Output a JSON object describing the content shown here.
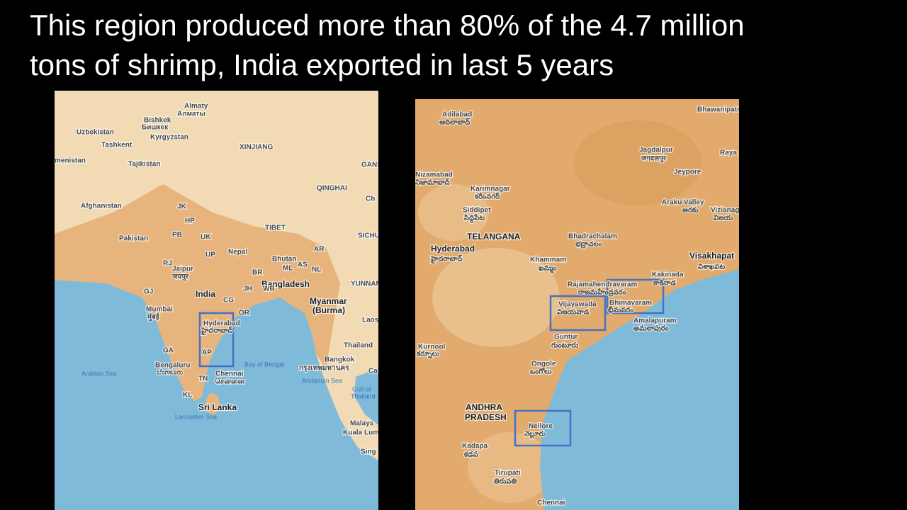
{
  "title_lines": [
    "This region produced more than 80% of the 4.7 million",
    "tons of shrimp, India exported in last 5 years"
  ],
  "left_map": {
    "labels": [
      "Almaty",
      "Алматы",
      "Bishkek",
      "Бишкек",
      "Uzbekistan",
      "Kyrgyzstan",
      "Tashkent",
      "XINJIANG",
      "menistan",
      "Tajikistan",
      "GANS",
      "QINGHAI",
      "Ch",
      "Afghanistan",
      "JK",
      "HP",
      "TIBET",
      "Pakistan",
      "PB",
      "UK",
      "SICHU",
      "Nepal",
      "UP",
      "AR",
      "RJ",
      "Bhutan",
      "Jaipur",
      "जयपुर",
      "BR",
      "ML",
      "AS",
      "NL",
      "Bangladesh",
      "YUNNAN",
      "JH",
      "WB",
      "India",
      "Myanmar",
      "(Burma)",
      "GJ",
      "CG",
      "OR",
      "Mumbai",
      "मुंबई",
      "Laos",
      "Hyderabad",
      "హైదరాబాద్",
      "Thailand",
      "GA",
      "AP",
      "Bay of Bengal",
      "Bangkok",
      "กรุงเทพมหานคร",
      "Ca",
      "Bengaluru",
      "ಬೆಂಗಳೂರು",
      "Arabian Sea",
      "Chennai",
      "சென்னை",
      "TN",
      "Andaman Sea",
      "Gulf of",
      "Thailand",
      "KL",
      "Sri Lanka",
      "Laccadive Sea",
      "Malays",
      "Kuala Lum",
      "Sing"
    ]
  },
  "right_map": {
    "labels": [
      "Adilabad",
      "ఆదిలాబాద్",
      "Bhawanipatr",
      "Nizamabad",
      "నిజామాబాద్",
      "Karimnagar",
      "కరీంనగర్",
      "Jagdalpur",
      "जगदलपुर",
      "Raya",
      "Jeypore",
      "Siddipet",
      "సిద్దిపేట",
      "Araku Valley",
      "అరకు",
      "Vizianag",
      "విజయ",
      "TELANGANA",
      "Bhadrachalam",
      "భద్రాచలం",
      "Hyderabad",
      "హైదరాబాద్",
      "Khammam",
      "ఖమ్మం",
      "Visakhapat",
      "విశాఖపట",
      "Kakinada",
      "కాకినాడ",
      "Rajamahendravaram",
      "రాజమహేంద్రవరం",
      "Vijayawada",
      "విజయవాడ",
      "Bhimavaram",
      "భీమవరం",
      "Amalapuram",
      "అమలాపురం",
      "Guntur",
      "గుంటూరు",
      "Kurnool",
      "కర్నూలు",
      "Ongole",
      "ఒంగోలు",
      "ANDHRA",
      "PRADESH",
      "Nellore",
      "నెల్లూరు",
      "Kadapa",
      "కడప",
      "Tirupati",
      "తిరుపతి",
      "Chennai"
    ]
  }
}
